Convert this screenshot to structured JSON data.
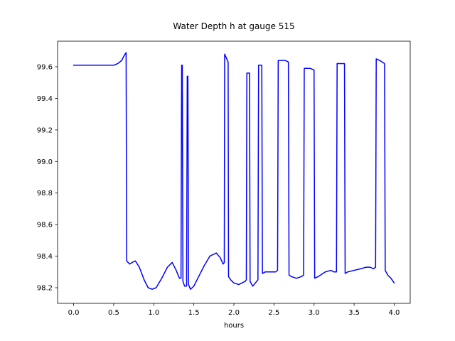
{
  "window": {
    "background_color": "#ffffff"
  },
  "chart_data": {
    "type": "line",
    "title": "Water Depth h at gauge 515",
    "xlabel": "hours",
    "ylabel": "",
    "grid": false,
    "legend": null,
    "line_color": "#0000ff",
    "axis_color": "#000000",
    "xlim": [
      -0.2,
      4.2
    ],
    "ylim": [
      98.101,
      99.762
    ],
    "x_ticks": [
      0.0,
      0.5,
      1.0,
      1.5,
      2.0,
      2.5,
      3.0,
      3.5,
      4.0
    ],
    "x_tick_labels": [
      "0.0",
      "0.5",
      "1.0",
      "1.5",
      "2.0",
      "2.5",
      "3.0",
      "3.5",
      "4.0"
    ],
    "y_ticks": [
      98.2,
      98.4,
      98.6,
      98.8,
      99.0,
      99.2,
      99.4,
      99.6
    ],
    "y_tick_labels": [
      "98.2",
      "98.4",
      "98.6",
      "98.8",
      "99.0",
      "99.2",
      "99.4",
      "99.6"
    ],
    "series": [
      {
        "name": "h",
        "x": [
          0.0,
          0.3,
          0.5,
          0.55,
          0.6,
          0.63,
          0.655,
          0.662,
          0.68,
          0.7,
          0.73,
          0.77,
          0.82,
          0.88,
          0.93,
          0.98,
          1.03,
          1.1,
          1.17,
          1.23,
          1.28,
          1.32,
          1.34,
          1.348,
          1.356,
          1.364,
          1.385,
          1.41,
          1.418,
          1.426,
          1.434,
          1.458,
          1.5,
          1.56,
          1.63,
          1.7,
          1.78,
          1.83,
          1.865,
          1.88,
          1.885,
          1.928,
          1.933,
          1.96,
          2.0,
          2.06,
          2.1,
          2.14,
          2.155,
          2.162,
          2.195,
          2.202,
          2.235,
          2.3,
          2.308,
          2.348,
          2.356,
          2.39,
          2.46,
          2.52,
          2.545,
          2.553,
          2.64,
          2.68,
          2.688,
          2.72,
          2.78,
          2.84,
          2.87,
          2.878,
          2.95,
          3.0,
          3.008,
          3.05,
          3.08,
          3.14,
          3.21,
          3.25,
          3.28,
          3.288,
          3.38,
          3.388,
          3.42,
          3.5,
          3.58,
          3.65,
          3.7,
          3.74,
          3.768,
          3.776,
          3.82,
          3.88,
          3.888,
          3.92,
          3.96,
          4.0
        ],
        "y": [
          99.61,
          99.61,
          99.61,
          99.62,
          99.64,
          99.67,
          99.69,
          98.37,
          98.36,
          98.35,
          98.36,
          98.37,
          98.33,
          98.25,
          98.2,
          98.19,
          98.2,
          98.26,
          98.33,
          98.36,
          98.31,
          98.26,
          98.26,
          99.61,
          99.61,
          98.24,
          98.21,
          98.21,
          99.54,
          99.54,
          98.22,
          98.19,
          98.21,
          98.27,
          98.34,
          98.4,
          98.42,
          98.39,
          98.35,
          98.36,
          99.68,
          99.63,
          98.27,
          98.25,
          98.23,
          98.22,
          98.23,
          98.24,
          98.25,
          99.56,
          99.56,
          98.24,
          98.21,
          98.25,
          99.61,
          99.61,
          98.29,
          98.3,
          98.3,
          98.3,
          98.31,
          99.64,
          99.64,
          99.63,
          98.28,
          98.27,
          98.26,
          98.27,
          98.28,
          99.59,
          99.59,
          99.58,
          98.26,
          98.27,
          98.28,
          98.3,
          98.31,
          98.3,
          98.3,
          99.62,
          99.62,
          98.29,
          98.3,
          98.31,
          98.32,
          98.33,
          98.33,
          98.32,
          98.33,
          99.65,
          99.64,
          99.62,
          98.31,
          98.28,
          98.26,
          98.23
        ]
      }
    ]
  }
}
